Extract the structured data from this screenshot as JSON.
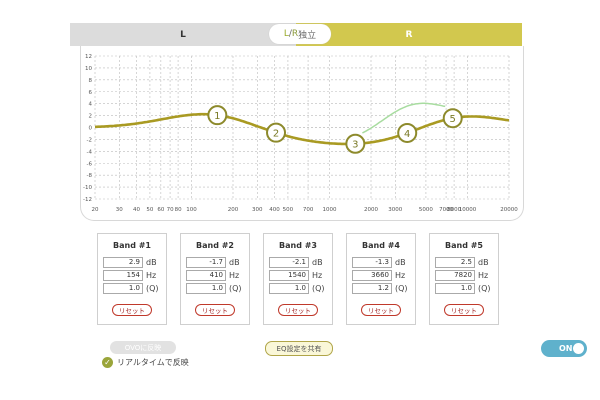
{
  "tabs": {
    "left": "L",
    "right": "R"
  },
  "independent": {
    "l": "L",
    "slash": "/",
    "r": "R",
    "suffix": "独立"
  },
  "graph": {
    "y_ticks": [
      "12",
      "10",
      "8",
      "6",
      "4",
      "2",
      "0",
      "-2",
      "-4",
      "-6",
      "-8",
      "-10",
      "-12"
    ],
    "x_ticks": [
      "20",
      "30",
      "40",
      "50",
      "60",
      "70",
      "80",
      "100",
      "200",
      "300",
      "400",
      "500",
      "700",
      "1000",
      "2000",
      "3000",
      "5000",
      "7000",
      "8000",
      "10000",
      "20000"
    ],
    "markers": [
      "1",
      "2",
      "3",
      "4",
      "5"
    ]
  },
  "bands": [
    {
      "title": "Band #1",
      "gain": "2.9",
      "freq": "154",
      "q": "1.0",
      "unit_db": "dB",
      "unit_hz": "Hz",
      "unit_q": "(Q)",
      "reset": "リセット"
    },
    {
      "title": "Band #2",
      "gain": "-1.7",
      "freq": "410",
      "q": "1.0",
      "unit_db": "dB",
      "unit_hz": "Hz",
      "unit_q": "(Q)",
      "reset": "リセット"
    },
    {
      "title": "Band #3",
      "gain": "-2.1",
      "freq": "1540",
      "q": "1.0",
      "unit_db": "dB",
      "unit_hz": "Hz",
      "unit_q": "(Q)",
      "reset": "リセット"
    },
    {
      "title": "Band #4",
      "gain": "-1.3",
      "freq": "3660",
      "q": "1.2",
      "unit_db": "dB",
      "unit_hz": "Hz",
      "unit_q": "(Q)",
      "reset": "リセット"
    },
    {
      "title": "Band #5",
      "gain": "2.5",
      "freq": "7820",
      "q": "1.0",
      "unit_db": "dB",
      "unit_hz": "Hz",
      "unit_q": "(Q)",
      "reset": "リセット"
    }
  ],
  "buttons": {
    "ovo": "OVOに反映",
    "share": "EQ設定を共有"
  },
  "realtime": {
    "label": "リアルタイムで反映",
    "checked": true
  },
  "toggle": {
    "label": "ON",
    "state": "on"
  },
  "colors": {
    "curve": "#a99a22",
    "secondary_curve": "#a8dca0",
    "tab_right": "#d2c84e",
    "toggle": "#5fb1cc"
  }
}
